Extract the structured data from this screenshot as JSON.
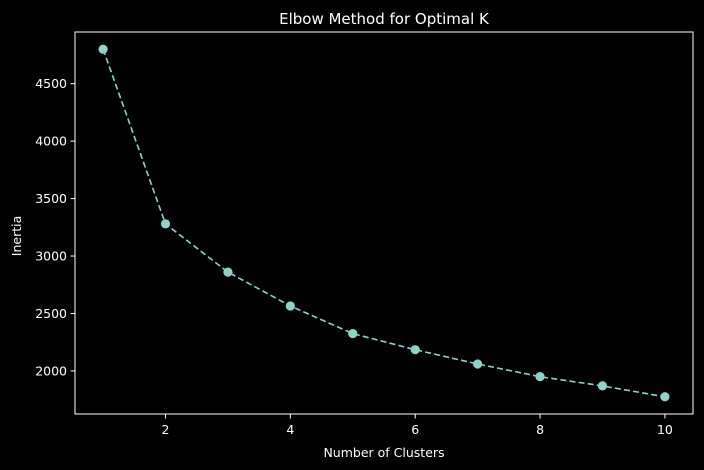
{
  "chart_data": {
    "type": "line",
    "title": "Elbow Method for Optimal K",
    "xlabel": "Number of Clusters",
    "ylabel": "Inertia",
    "x": [
      1,
      2,
      3,
      4,
      5,
      6,
      7,
      8,
      9,
      10
    ],
    "series": [
      {
        "values": [
          4800,
          3280,
          2860,
          2565,
          2325,
          2185,
          2060,
          1950,
          1870,
          1775
        ]
      }
    ],
    "xticks": [
      2,
      4,
      6,
      8,
      10
    ],
    "yticks": [
      2000,
      2500,
      3000,
      3500,
      4000,
      4500
    ],
    "xlim": [
      0.55,
      10.45
    ],
    "ylim": [
      1625,
      4950
    ],
    "grid": false,
    "line_style": "dashed",
    "marker": "circle",
    "colors": {
      "background": "#000000",
      "axes": "#ffffff",
      "text": "#ffffff",
      "series": "#8dd3c7"
    }
  }
}
